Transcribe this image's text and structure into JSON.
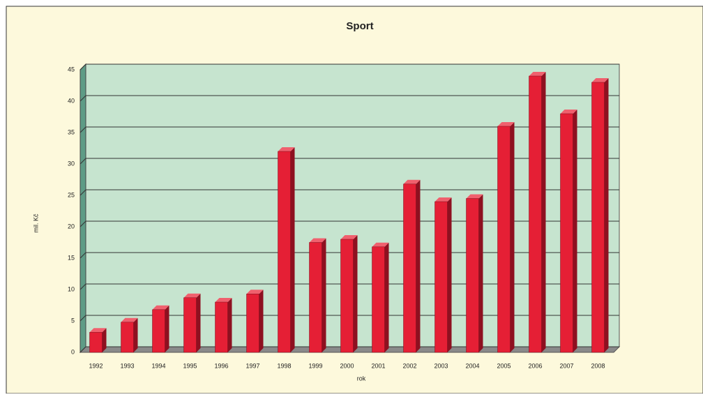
{
  "chart_data": {
    "type": "bar3d",
    "title": "Sport",
    "x_label": "rok",
    "y_label": "mil. Kč",
    "categories": [
      "1992",
      "1993",
      "1994",
      "1995",
      "1996",
      "1997",
      "1998",
      "1999",
      "2000",
      "2001",
      "2002",
      "2003",
      "2004",
      "2005",
      "2006",
      "2007",
      "2008"
    ],
    "values": [
      3.2,
      4.8,
      6.8,
      8.7,
      8,
      9.3,
      32,
      17.5,
      18,
      16.8,
      26.8,
      24,
      24.5,
      36,
      44,
      38,
      43
    ],
    "color": "#e51f35",
    "wall_color": "#c6e4cf",
    "ylim": [
      0,
      45
    ],
    "yticks": [
      0,
      5,
      10,
      15,
      20,
      25,
      30,
      35,
      40,
      45
    ],
    "grid": true
  }
}
